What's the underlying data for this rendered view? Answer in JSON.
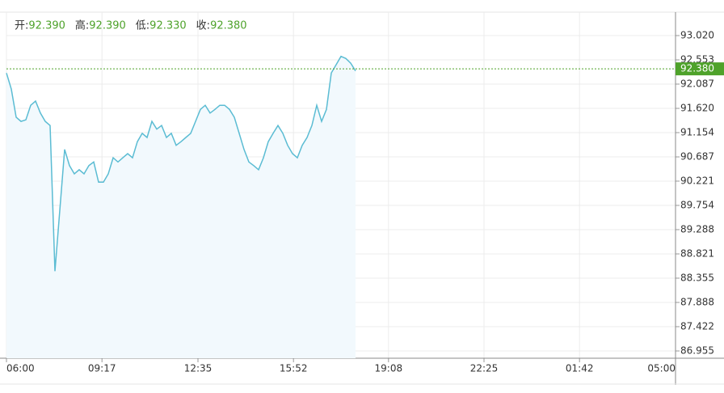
{
  "chart_data": {
    "type": "line",
    "header": [
      {
        "label": "开:",
        "value": "92.390"
      },
      {
        "label": "高:",
        "value": "92.390"
      },
      {
        "label": "低:",
        "value": "92.330"
      },
      {
        "label": "收:",
        "value": "92.380"
      }
    ],
    "x": [
      "06:00",
      "06:10",
      "06:20",
      "06:30",
      "06:40",
      "06:50",
      "07:00",
      "07:10",
      "07:20",
      "07:30",
      "07:40",
      "07:50",
      "08:00",
      "08:10",
      "08:20",
      "08:30",
      "08:40",
      "08:50",
      "09:00",
      "09:10",
      "09:20",
      "09:30",
      "09:40",
      "09:50",
      "10:00",
      "10:10",
      "10:20",
      "10:30",
      "10:40",
      "10:50",
      "11:00",
      "11:10",
      "11:20",
      "11:30",
      "11:40",
      "11:50",
      "12:00",
      "12:10",
      "12:20",
      "12:30",
      "12:40",
      "12:50",
      "13:00",
      "13:10",
      "13:20",
      "13:30",
      "13:40",
      "13:50",
      "14:00",
      "14:10",
      "14:20",
      "14:30",
      "14:40",
      "14:50",
      "15:00",
      "15:10",
      "15:20",
      "15:30",
      "15:40",
      "15:50",
      "16:00",
      "16:10",
      "16:20",
      "16:30",
      "16:40",
      "16:50",
      "17:00",
      "17:10",
      "17:20",
      "17:30",
      "17:40",
      "17:50",
      "18:00"
    ],
    "series": [
      {
        "color": "#5bbcd3",
        "values": [
          92.3,
          91.99,
          91.45,
          91.37,
          91.4,
          91.68,
          91.76,
          91.53,
          91.37,
          91.29,
          88.49,
          89.66,
          90.83,
          90.52,
          90.36,
          90.44,
          90.36,
          90.52,
          90.59,
          90.2,
          90.2,
          90.36,
          90.67,
          90.59,
          90.67,
          90.75,
          90.67,
          90.98,
          91.14,
          91.06,
          91.37,
          91.22,
          91.29,
          91.06,
          91.14,
          90.91,
          90.98,
          91.06,
          91.14,
          91.37,
          91.6,
          91.68,
          91.53,
          91.6,
          91.68,
          91.68,
          91.6,
          91.45,
          91.14,
          90.83,
          90.59,
          90.52,
          90.44,
          90.67,
          90.98,
          91.14,
          91.29,
          91.14,
          90.91,
          90.75,
          90.67,
          90.91,
          91.06,
          91.29,
          91.68,
          91.37,
          91.6,
          92.3,
          92.46,
          92.62,
          92.58,
          92.49,
          92.34
        ]
      }
    ],
    "xlim": [
      "06:00",
      "05:00"
    ],
    "xticks": [
      "06:00",
      "09:17",
      "12:35",
      "15:52",
      "19:08",
      "22:25",
      "01:42",
      "05:00"
    ],
    "ylim": [
      86.815,
      93.471
    ],
    "yticks": [
      {
        "value": 93.02,
        "label": "93.020"
      },
      {
        "value": 92.553,
        "label": "92.553"
      },
      {
        "value": 92.087,
        "label": "92.087"
      },
      {
        "value": 91.62,
        "label": "91.620"
      },
      {
        "value": 91.154,
        "label": "91.154"
      },
      {
        "value": 90.687,
        "label": "90.687"
      },
      {
        "value": 90.221,
        "label": "90.221"
      },
      {
        "value": 89.754,
        "label": "89.754"
      },
      {
        "value": 89.288,
        "label": "89.288"
      },
      {
        "value": 88.821,
        "label": "88.821"
      },
      {
        "value": 88.355,
        "label": "88.355"
      },
      {
        "value": 87.888,
        "label": "87.888"
      },
      {
        "value": 87.422,
        "label": "87.422"
      },
      {
        "value": 86.955,
        "label": "86.955"
      }
    ],
    "last": {
      "value": 92.38,
      "label": "92.380",
      "color": "#4ea22a"
    },
    "grid": true
  }
}
